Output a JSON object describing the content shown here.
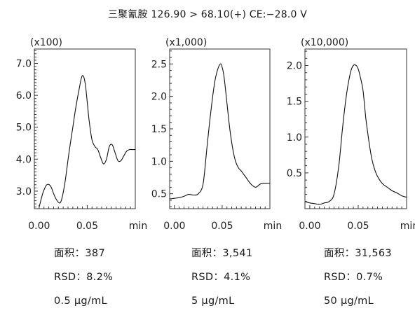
{
  "title": "三聚氰胺 126.90 > 68.10(+) CE:−28.0 V",
  "chart_data": [
    {
      "type": "line",
      "scale_label": "(x100)",
      "xlim": [
        -0.005,
        0.1
      ],
      "ylim": [
        2.45,
        7.45
      ],
      "xticks": [
        "0.00",
        "0.05"
      ],
      "x_unit": "min",
      "yticks": [
        "3.0",
        "4.0",
        "5.0",
        "6.0",
        "7.0"
      ],
      "x": [
        0.0,
        0.004,
        0.008,
        0.012,
        0.016,
        0.02,
        0.023,
        0.027,
        0.031,
        0.035,
        0.038,
        0.041,
        0.044,
        0.046,
        0.048,
        0.05,
        0.052,
        0.055,
        0.058,
        0.061,
        0.064,
        0.067,
        0.07,
        0.073,
        0.076,
        0.079,
        0.082,
        0.085,
        0.088,
        0.091,
        0.094,
        0.097,
        0.1
      ],
      "y": [
        2.5,
        2.95,
        3.2,
        3.15,
        2.85,
        2.65,
        2.7,
        3.3,
        4.2,
        5.0,
        5.6,
        6.1,
        6.55,
        6.6,
        6.35,
        5.8,
        5.2,
        4.6,
        4.4,
        4.3,
        4.05,
        3.85,
        4.0,
        4.4,
        4.45,
        4.2,
        3.95,
        3.95,
        4.1,
        4.25,
        4.3,
        4.3,
        4.3
      ],
      "stats": {
        "area": "面积：387",
        "rsd": "RSD：8.2%",
        "concentration": "0.5 μg/mL"
      }
    },
    {
      "type": "line",
      "scale_label": "(x1,000)",
      "xlim": [
        -0.005,
        0.1
      ],
      "ylim": [
        0.27,
        2.73
      ],
      "xticks": [
        "0.00",
        "0.05"
      ],
      "x_unit": "min",
      "yticks": [
        "0.5",
        "1.0",
        "1.5",
        "2.0",
        "2.5"
      ],
      "x": [
        -0.005,
        0.0,
        0.005,
        0.01,
        0.015,
        0.02,
        0.025,
        0.03,
        0.034,
        0.038,
        0.042,
        0.045,
        0.048,
        0.05,
        0.052,
        0.055,
        0.058,
        0.061,
        0.064,
        0.067,
        0.07,
        0.075,
        0.08,
        0.085,
        0.09,
        0.095,
        0.1
      ],
      "y": [
        0.42,
        0.43,
        0.44,
        0.46,
        0.49,
        0.48,
        0.5,
        0.65,
        1.2,
        1.75,
        2.2,
        2.4,
        2.5,
        2.45,
        2.3,
        1.9,
        1.5,
        1.2,
        1.0,
        0.9,
        0.85,
        0.75,
        0.65,
        0.6,
        0.65,
        0.66,
        0.66
      ],
      "stats": {
        "area": "面积：3,541",
        "rsd": "RSD：4.1%",
        "concentration": "5 μg/mL"
      }
    },
    {
      "type": "line",
      "scale_label": "(x10,000)",
      "xlim": [
        -0.005,
        0.1
      ],
      "ylim": [
        0.0,
        2.23
      ],
      "xticks": [
        "0.00",
        "0.05"
      ],
      "x_unit": "min",
      "yticks": [
        "0.5",
        "1.0",
        "1.5",
        "2.0"
      ],
      "x": [
        -0.005,
        0.0,
        0.005,
        0.01,
        0.015,
        0.02,
        0.025,
        0.03,
        0.034,
        0.038,
        0.042,
        0.045,
        0.048,
        0.05,
        0.052,
        0.055,
        0.058,
        0.061,
        0.064,
        0.067,
        0.07,
        0.075,
        0.08,
        0.085,
        0.09,
        0.095,
        0.1
      ],
      "y": [
        0.1,
        0.08,
        0.07,
        0.06,
        0.08,
        0.1,
        0.2,
        0.6,
        1.15,
        1.6,
        1.9,
        2.0,
        2.0,
        1.95,
        1.85,
        1.65,
        1.25,
        0.95,
        0.7,
        0.55,
        0.45,
        0.35,
        0.3,
        0.25,
        0.22,
        0.18,
        0.16
      ],
      "stats": {
        "area": "面积：31,563",
        "rsd": "RSD：0.7%",
        "concentration": "50 μg/mL"
      }
    }
  ]
}
